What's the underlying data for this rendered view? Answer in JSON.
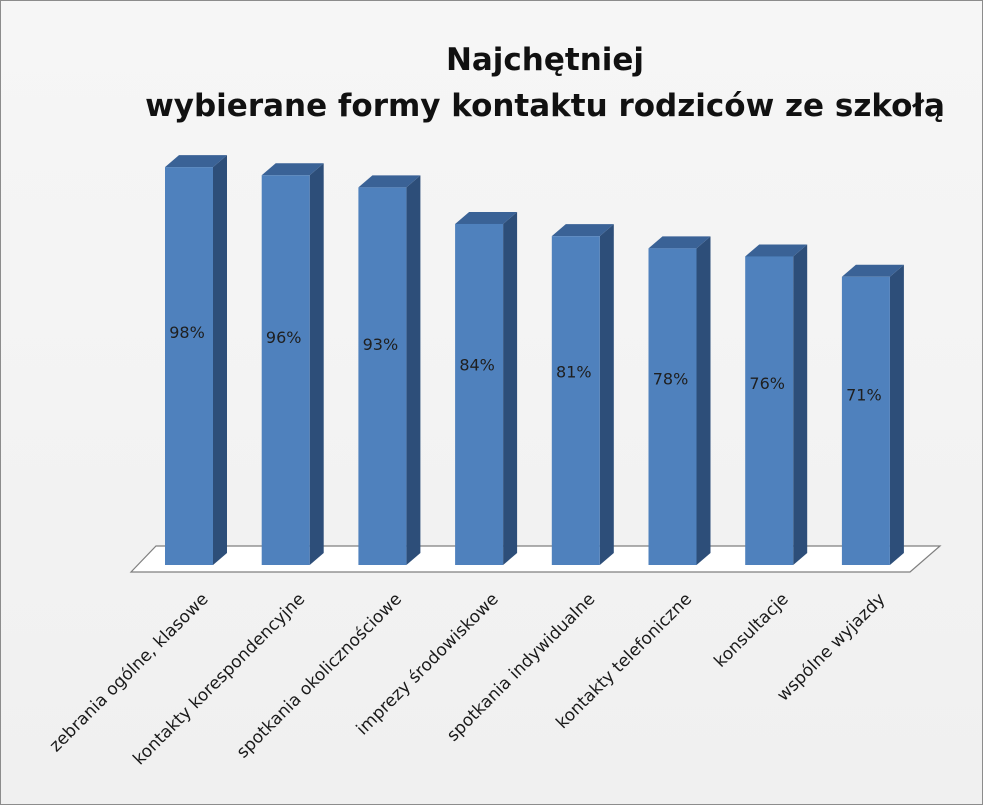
{
  "chart_data": {
    "type": "bar",
    "title_line1": "Najchętniej",
    "title_line2": "wybierane formy kontaktu rodziców ze szkołą",
    "categories": [
      "zebrania ogólne, klasowe",
      "kontakty korespondencyjne",
      "spotkania okolicznościowe",
      "imprezy środowiskowe",
      "spotkania indywidualne",
      "kontakty telefoniczne",
      "konsultacje",
      "wspólne wyjazdy"
    ],
    "values": [
      98,
      96,
      93,
      84,
      81,
      78,
      76,
      71
    ],
    "value_labels": [
      "98%",
      "96%",
      "93%",
      "84%",
      "81%",
      "78%",
      "76%",
      "71%"
    ],
    "unit": "%",
    "bar_style": "3d-column",
    "legend": "none",
    "grid": false,
    "colors": {
      "bar_front": "#4f81bd",
      "bar_side": "#2d4e79",
      "bar_top": "#3a6296",
      "floor": "#ffffff",
      "floor_edge": "#7f7f7f",
      "label_text": "#1f1f1f"
    }
  }
}
